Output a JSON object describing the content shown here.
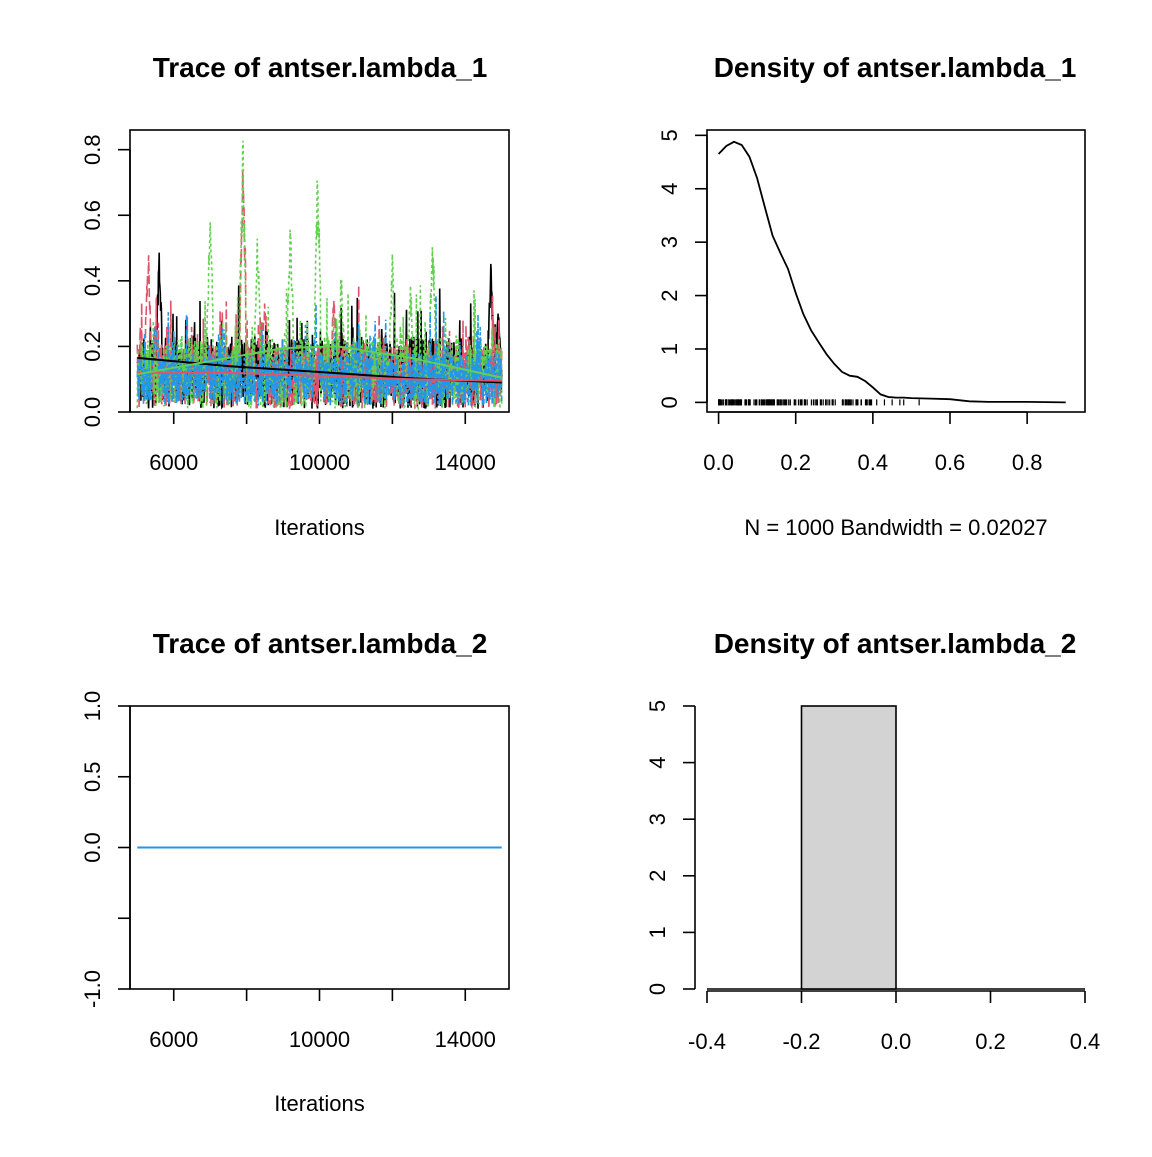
{
  "colors": {
    "chain1": "#000000",
    "chain2": "#DF536B",
    "chain3": "#61D04F",
    "chain4": "#2297E6",
    "hist_fill": "#D3D3D3"
  },
  "chart_data": [
    {
      "type": "line",
      "title": "Trace of antser.lambda_1",
      "xlabel": "Iterations",
      "ylabel": "",
      "xlim": [
        4800,
        15200
      ],
      "ylim": [
        0,
        0.86
      ],
      "xticks": [
        6000,
        8000,
        10000,
        12000,
        14000
      ],
      "xticklabels": [
        "6000",
        "",
        "10000",
        "",
        "14000"
      ],
      "yticks": [
        0.0,
        0.2,
        0.4,
        0.6,
        0.8
      ],
      "yticklabels": [
        "0.0",
        "0.2",
        "0.4",
        "0.6",
        "0.8"
      ],
      "trace": {
        "x_start": 5000,
        "x_end": 15000,
        "n": 1000
      },
      "series": [
        {
          "peaks": [
            [
              5600,
              0.53
            ],
            [
              14700,
              0.47
            ],
            [
              14900,
              0.33
            ]
          ]
        },
        {
          "peaks": [
            [
              5300,
              0.52
            ],
            [
              7900,
              0.82
            ],
            [
              8500,
              0.37
            ],
            [
              10400,
              0.38
            ]
          ]
        },
        {
          "peaks": [
            [
              7000,
              0.64
            ],
            [
              7900,
              0.85
            ],
            [
              8300,
              0.56
            ],
            [
              9200,
              0.6
            ],
            [
              9950,
              0.78
            ],
            [
              10600,
              0.45
            ],
            [
              12000,
              0.5
            ],
            [
              12500,
              0.4
            ],
            [
              13100,
              0.59
            ]
          ]
        },
        {
          "peaks": [
            [
              5500,
              0.32
            ],
            [
              9900,
              0.3
            ],
            [
              11500,
              0.26
            ]
          ]
        }
      ],
      "smooths": [
        {
          "x": [
            5000,
            7500,
            10000,
            12500,
            15000
          ],
          "y": [
            0.165,
            0.14,
            0.122,
            0.103,
            0.09
          ]
        },
        {
          "x": [
            5000,
            7500,
            10000,
            12500,
            15000
          ],
          "y": [
            0.12,
            0.12,
            0.11,
            0.1,
            0.095
          ]
        },
        {
          "x": [
            5000,
            7000,
            9000,
            10500,
            12500,
            15000
          ],
          "y": [
            0.115,
            0.155,
            0.195,
            0.2,
            0.165,
            0.105
          ]
        }
      ]
    },
    {
      "type": "line",
      "title": "Density of antser.lambda_1",
      "xlabel": "N = 1000   Bandwidth = 0.02027",
      "ylabel": "",
      "xlim": [
        -0.03,
        0.95
      ],
      "ylim": [
        -0.18,
        5.1
      ],
      "xticks": [
        0.0,
        0.2,
        0.4,
        0.6,
        0.8
      ],
      "xticklabels": [
        "0.0",
        "0.2",
        "0.4",
        "0.6",
        "0.8"
      ],
      "yticks": [
        0,
        1,
        2,
        3,
        4,
        5
      ],
      "yticklabels": [
        "0",
        "1",
        "2",
        "3",
        "4",
        "5"
      ],
      "density": {
        "x": [
          0.0,
          0.02,
          0.04,
          0.06,
          0.08,
          0.1,
          0.12,
          0.14,
          0.16,
          0.18,
          0.2,
          0.22,
          0.24,
          0.26,
          0.28,
          0.3,
          0.32,
          0.34,
          0.36,
          0.38,
          0.4,
          0.42,
          0.44,
          0.46,
          0.48,
          0.5,
          0.55,
          0.6,
          0.65,
          0.7,
          0.8,
          0.9
        ],
        "y": [
          4.65,
          4.8,
          4.88,
          4.82,
          4.6,
          4.2,
          3.65,
          3.12,
          2.8,
          2.5,
          2.05,
          1.65,
          1.35,
          1.12,
          0.9,
          0.72,
          0.57,
          0.5,
          0.48,
          0.4,
          0.28,
          0.15,
          0.1,
          0.09,
          0.09,
          0.08,
          0.07,
          0.06,
          0.02,
          0.01,
          0.01,
          0.0
        ]
      },
      "rug": {
        "dense_from": 0.0,
        "dense_to": 0.4,
        "extra": [
          0.41,
          0.43,
          0.45,
          0.47,
          0.48,
          0.52
        ]
      }
    },
    {
      "type": "line",
      "title": "Trace of antser.lambda_2",
      "xlabel": "Iterations",
      "ylabel": "",
      "xlim": [
        4800,
        15200
      ],
      "ylim": [
        -1.0,
        1.0
      ],
      "xticks": [
        6000,
        8000,
        10000,
        12000,
        14000
      ],
      "xticklabels": [
        "6000",
        "",
        "10000",
        "",
        "14000"
      ],
      "yticks": [
        -1.0,
        -0.5,
        0.0,
        0.5,
        1.0
      ],
      "yticklabels": [
        "-1.0",
        "",
        "0.0",
        "0.5",
        "1.0"
      ],
      "series": [
        {
          "x": [
            5000,
            15000
          ],
          "y": [
            0,
            0
          ]
        }
      ]
    },
    {
      "type": "bar",
      "title": "Density of antser.lambda_2",
      "xlabel": "",
      "ylabel": "",
      "xlim": [
        -0.4,
        0.4
      ],
      "ylim": [
        0,
        5
      ],
      "xticks": [
        -0.4,
        -0.2,
        0.0,
        0.2,
        0.4
      ],
      "xticklabels": [
        "-0.4",
        "-0.2",
        "0.0",
        "0.2",
        "0.4"
      ],
      "yticks": [
        0,
        1,
        2,
        3,
        4,
        5
      ],
      "yticklabels": [
        "0",
        "1",
        "2",
        "3",
        "4",
        "5"
      ],
      "bars": [
        {
          "x0": -0.2,
          "x1": 0.0,
          "value": 5
        }
      ],
      "baseline": [
        -0.4,
        0.4
      ]
    }
  ]
}
